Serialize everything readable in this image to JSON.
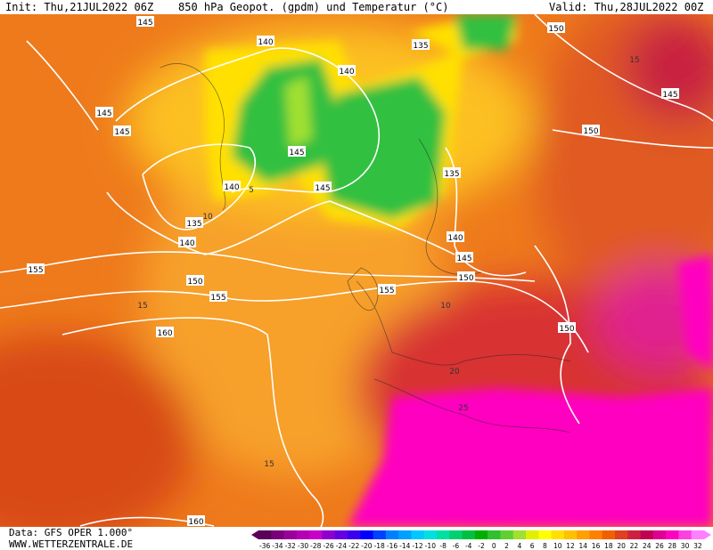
{
  "header": {
    "init": "Init: Thu,21JUL2022 06Z",
    "title": "850 hPa Geopot. (gpdm) und Temperatur (°C)",
    "valid": "Valid: Thu,28JUL2022 00Z"
  },
  "footer": {
    "source": "Data: GFS OPER 1.000°",
    "website": "WWW.WETTERZENTRALE.DE"
  },
  "geopotential_labels": [
    145,
    145,
    145,
    145,
    145,
    145,
    145,
    140,
    140,
    140,
    140,
    140,
    135,
    135,
    135,
    150,
    150,
    150,
    150,
    150,
    155,
    155,
    155,
    160,
    160
  ],
  "temperature_labels": [
    15,
    15,
    15,
    10,
    10,
    5,
    20,
    25
  ],
  "colorbar": {
    "labels": [
      -36,
      -34,
      -32,
      -30,
      -28,
      -26,
      -24,
      -22,
      -20,
      -18,
      -16,
      -14,
      -12,
      -10,
      -8,
      -6,
      -4,
      -2,
      0,
      2,
      4,
      6,
      8,
      10,
      12,
      14,
      16,
      18,
      20,
      22,
      24,
      26,
      28,
      30,
      32
    ],
    "colors": [
      "#5a005a",
      "#7a007a",
      "#9a009a",
      "#b400b4",
      "#c800c8",
      "#8c00d0",
      "#6400e0",
      "#3c00f0",
      "#0000ff",
      "#0040ff",
      "#0080ff",
      "#00a0ff",
      "#00c8ff",
      "#00e0e0",
      "#00e0a0",
      "#00d070",
      "#00c040",
      "#00b000",
      "#30c030",
      "#60d030",
      "#a0e030",
      "#e0f000",
      "#ffff00",
      "#ffe000",
      "#ffc000",
      "#ffa000",
      "#ff8000",
      "#f06000",
      "#e04020",
      "#d02040",
      "#c00050",
      "#e00090",
      "#ff00c0",
      "#ff40e0",
      "#ff80ff"
    ]
  }
}
